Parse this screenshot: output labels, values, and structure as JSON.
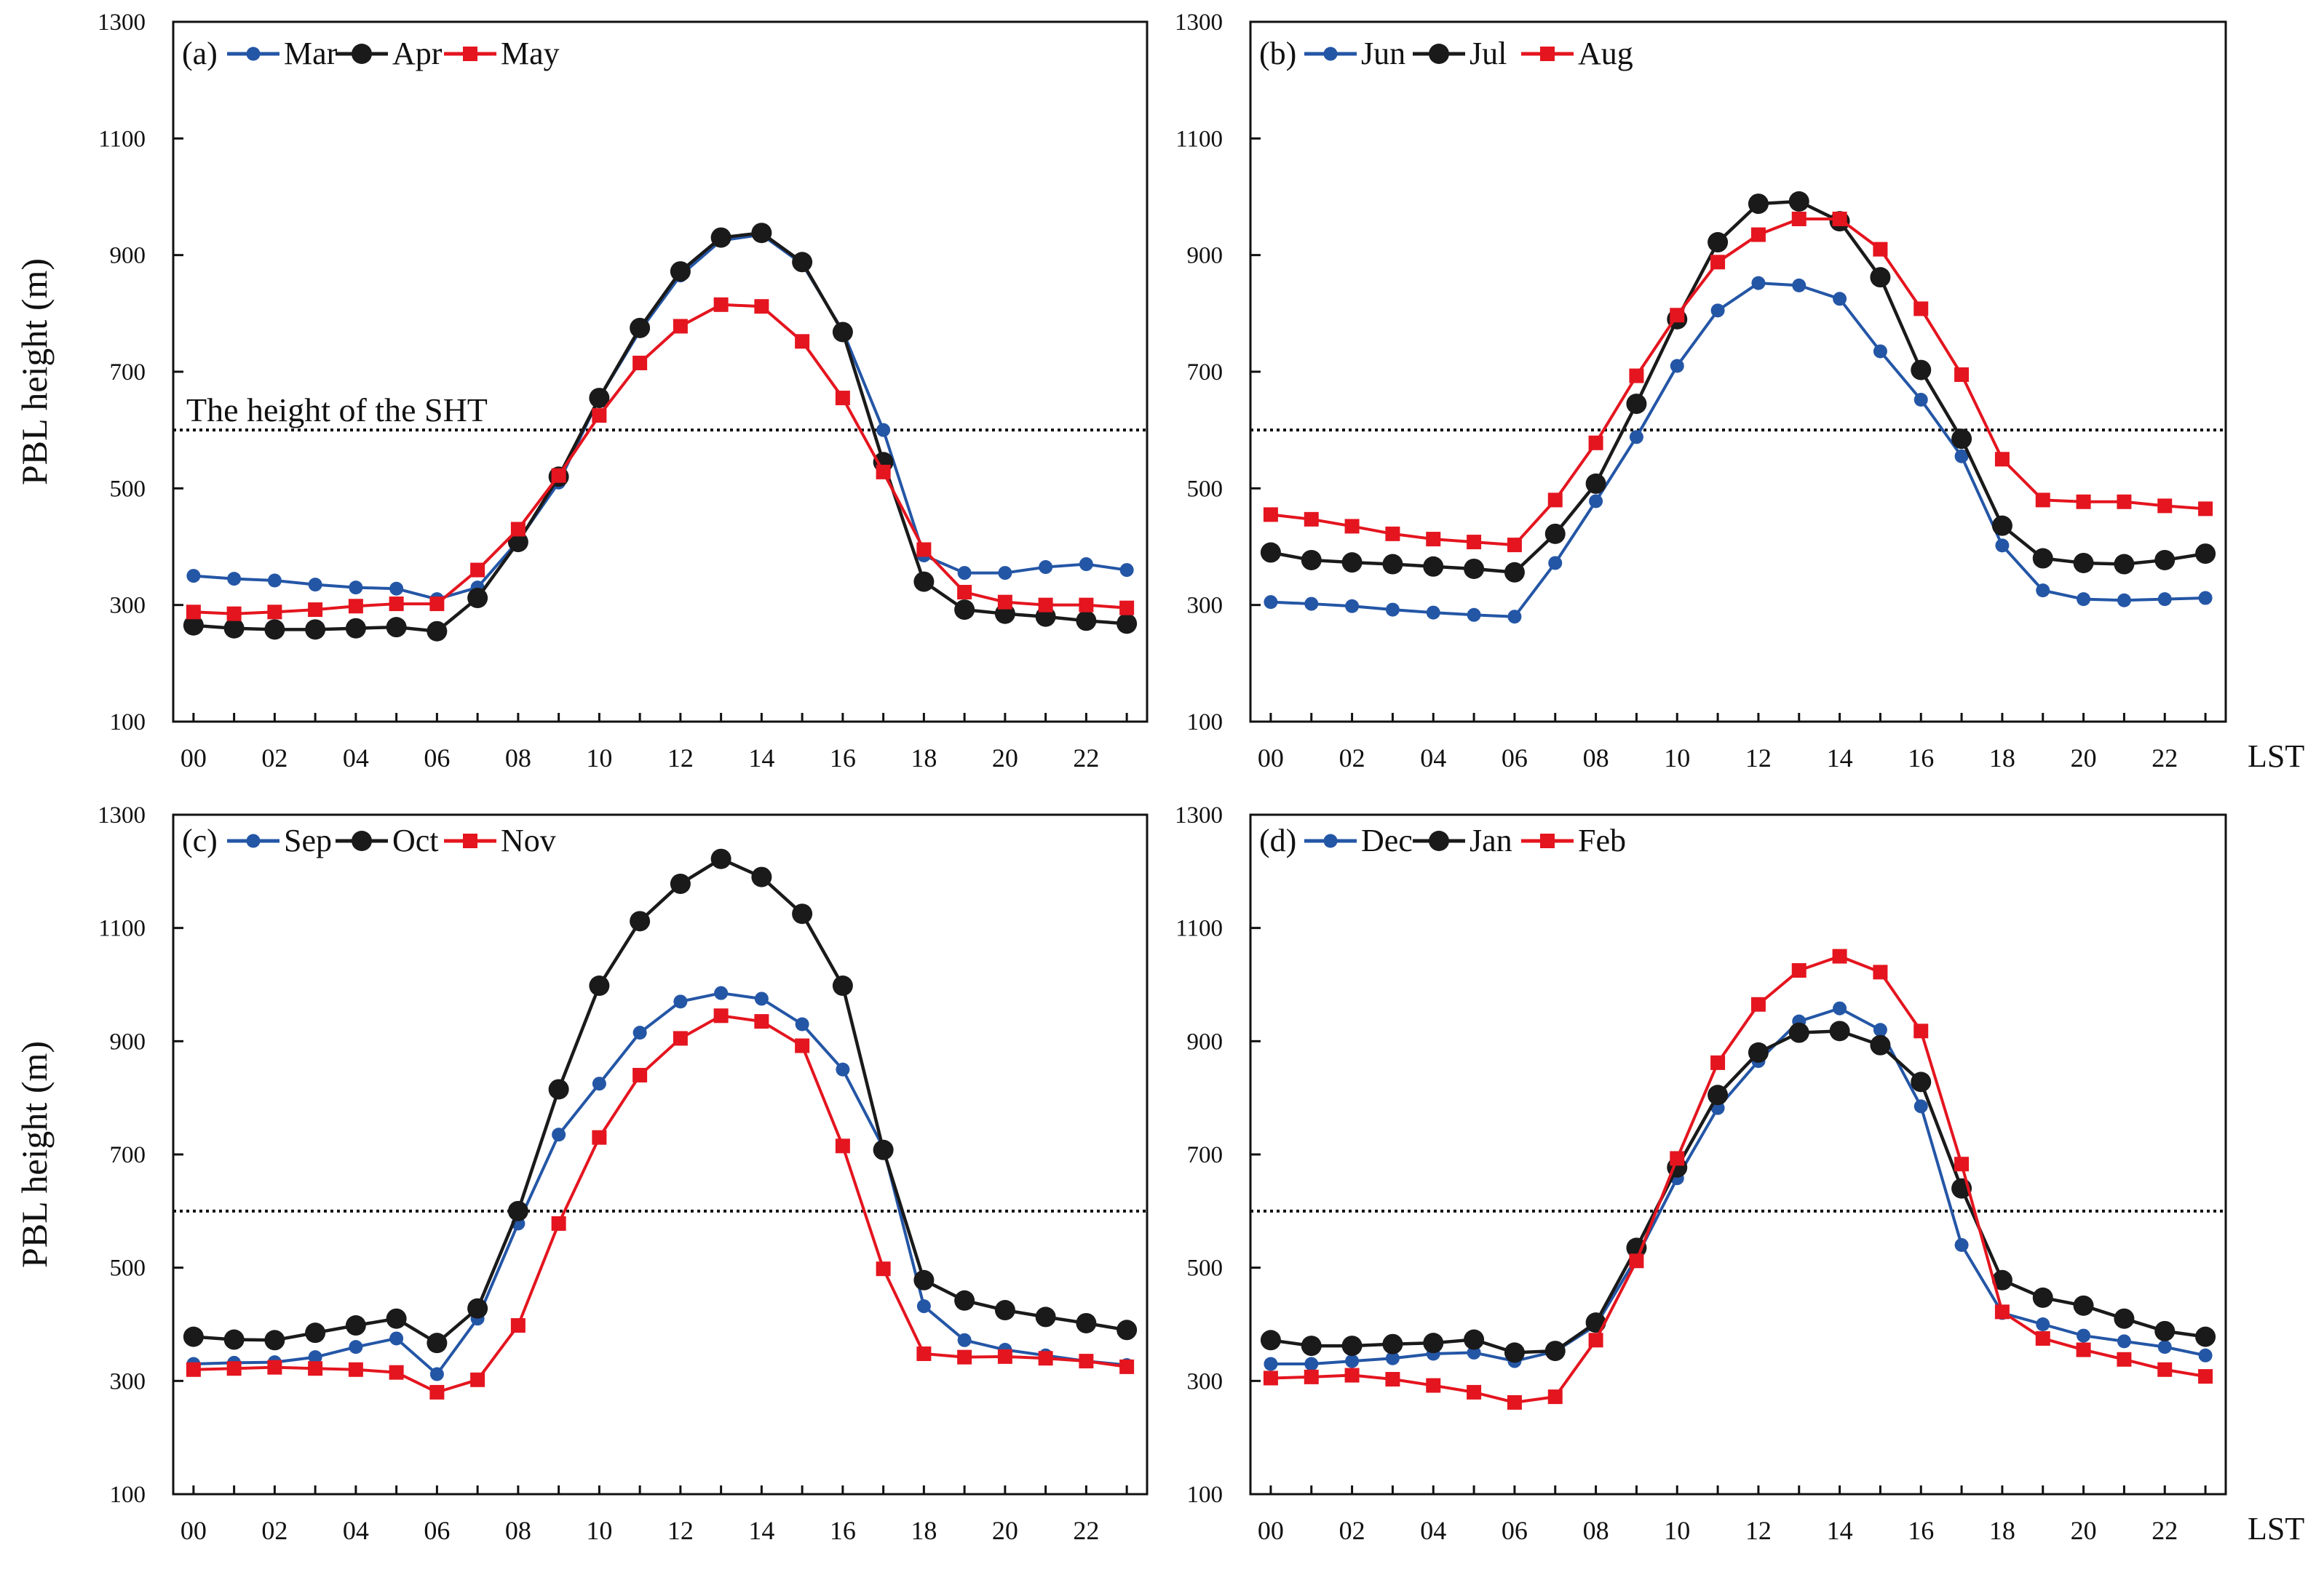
{
  "figure": {
    "ylabel": "PBL height (m)",
    "xunit": "LST",
    "annotation": "The height of the SHT",
    "reference_height": 600,
    "colors": {
      "blue": "#2456a6",
      "black": "#1a1a1a",
      "red": "#e4151f"
    }
  },
  "chart_data": [
    {
      "type": "line",
      "panel": "(a)",
      "x": [
        0,
        1,
        2,
        3,
        4,
        5,
        6,
        7,
        8,
        9,
        10,
        11,
        12,
        13,
        14,
        15,
        16,
        17,
        18,
        19,
        20,
        21,
        22,
        23
      ],
      "xticks": [
        "00",
        "02",
        "04",
        "06",
        "08",
        "10",
        "12",
        "14",
        "16",
        "18",
        "20",
        "22"
      ],
      "yticks": [
        "100",
        "300",
        "500",
        "700",
        "900",
        "1100",
        "1300"
      ],
      "ylim": [
        100,
        1300
      ],
      "ylabel": "PBL height (m)",
      "reference_line": 600,
      "annotation": "The height of the SHT",
      "series": [
        {
          "name": "Mar",
          "color": "#2456a6",
          "marker": "small-circle",
          "values": [
            350,
            345,
            342,
            335,
            330,
            328,
            310,
            330,
            410,
            510,
            655,
            770,
            865,
            925,
            935,
            885,
            770,
            600,
            385,
            355,
            355,
            365,
            370,
            360
          ]
        },
        {
          "name": "Apr",
          "color": "#1a1a1a",
          "marker": "large-circle",
          "values": [
            265,
            260,
            258,
            258,
            260,
            262,
            255,
            312,
            408,
            520,
            655,
            775,
            872,
            930,
            938,
            888,
            768,
            545,
            340,
            292,
            285,
            280,
            273,
            268
          ]
        },
        {
          "name": "May",
          "color": "#e4151f",
          "marker": "square",
          "values": [
            288,
            285,
            288,
            292,
            298,
            302,
            302,
            360,
            430,
            522,
            625,
            715,
            778,
            815,
            812,
            752,
            655,
            528,
            395,
            322,
            305,
            300,
            300,
            295
          ]
        }
      ]
    },
    {
      "type": "line",
      "panel": "(b)",
      "x": [
        0,
        1,
        2,
        3,
        4,
        5,
        6,
        7,
        8,
        9,
        10,
        11,
        12,
        13,
        14,
        15,
        16,
        17,
        18,
        19,
        20,
        21,
        22,
        23
      ],
      "xticks": [
        "00",
        "02",
        "04",
        "06",
        "08",
        "10",
        "12",
        "14",
        "16",
        "18",
        "20",
        "22"
      ],
      "yticks": [
        "100",
        "300",
        "500",
        "700",
        "900",
        "1100",
        "1300"
      ],
      "ylim": [
        100,
        1300
      ],
      "ylabel": "",
      "xunit": "LST",
      "reference_line": 600,
      "series": [
        {
          "name": "Jun",
          "color": "#2456a6",
          "marker": "small-circle",
          "values": [
            305,
            302,
            298,
            292,
            287,
            283,
            280,
            372,
            478,
            588,
            710,
            805,
            852,
            848,
            825,
            735,
            652,
            555,
            402,
            325,
            310,
            308,
            310,
            312
          ]
        },
        {
          "name": "Jul",
          "color": "#1a1a1a",
          "marker": "large-circle",
          "values": [
            390,
            377,
            373,
            370,
            366,
            362,
            356,
            422,
            508,
            645,
            790,
            922,
            988,
            992,
            958,
            862,
            703,
            585,
            436,
            380,
            372,
            370,
            377,
            388
          ]
        },
        {
          "name": "Aug",
          "color": "#e4151f",
          "marker": "square",
          "values": [
            455,
            447,
            435,
            422,
            413,
            408,
            403,
            480,
            578,
            693,
            797,
            888,
            935,
            962,
            962,
            910,
            808,
            695,
            550,
            480,
            477,
            477,
            470,
            465
          ]
        }
      ]
    },
    {
      "type": "line",
      "panel": "(c)",
      "x": [
        0,
        1,
        2,
        3,
        4,
        5,
        6,
        7,
        8,
        9,
        10,
        11,
        12,
        13,
        14,
        15,
        16,
        17,
        18,
        19,
        20,
        21,
        22,
        23
      ],
      "xticks": [
        "00",
        "02",
        "04",
        "06",
        "08",
        "10",
        "12",
        "14",
        "16",
        "18",
        "20",
        "22"
      ],
      "yticks": [
        "100",
        "300",
        "500",
        "700",
        "900",
        "1100",
        "1300"
      ],
      "ylim": [
        100,
        1300
      ],
      "ylabel": "PBL height (m)",
      "reference_line": 600,
      "series": [
        {
          "name": "Sep",
          "color": "#2456a6",
          "marker": "small-circle",
          "values": [
            330,
            332,
            333,
            342,
            360,
            375,
            312,
            410,
            578,
            735,
            825,
            915,
            970,
            985,
            975,
            930,
            850,
            712,
            432,
            372,
            355,
            345,
            335,
            328
          ]
        },
        {
          "name": "Oct",
          "color": "#1a1a1a",
          "marker": "large-circle",
          "values": [
            378,
            373,
            372,
            385,
            398,
            410,
            367,
            428,
            600,
            815,
            998,
            1112,
            1178,
            1222,
            1190,
            1125,
            998,
            708,
            478,
            442,
            425,
            413,
            402,
            390
          ]
        },
        {
          "name": "Nov",
          "color": "#e4151f",
          "marker": "square",
          "values": [
            320,
            322,
            324,
            322,
            320,
            315,
            280,
            302,
            398,
            578,
            730,
            840,
            905,
            945,
            935,
            892,
            715,
            498,
            348,
            342,
            343,
            340,
            335,
            325
          ]
        }
      ]
    },
    {
      "type": "line",
      "panel": "(d)",
      "x": [
        0,
        1,
        2,
        3,
        4,
        5,
        6,
        7,
        8,
        9,
        10,
        11,
        12,
        13,
        14,
        15,
        16,
        17,
        18,
        19,
        20,
        21,
        22,
        23
      ],
      "xticks": [
        "00",
        "02",
        "04",
        "06",
        "08",
        "10",
        "12",
        "14",
        "16",
        "18",
        "20",
        "22"
      ],
      "yticks": [
        "100",
        "300",
        "500",
        "700",
        "900",
        "1100",
        "1300"
      ],
      "ylim": [
        100,
        1300
      ],
      "ylabel": "",
      "xunit": "LST",
      "reference_line": 600,
      "series": [
        {
          "name": "Dec",
          "color": "#2456a6",
          "marker": "small-circle",
          "values": [
            330,
            330,
            335,
            340,
            348,
            350,
            335,
            352,
            398,
            518,
            658,
            782,
            865,
            935,
            958,
            920,
            785,
            540,
            420,
            400,
            380,
            370,
            360,
            345
          ]
        },
        {
          "name": "Jan",
          "color": "#1a1a1a",
          "marker": "large-circle",
          "values": [
            372,
            362,
            362,
            365,
            367,
            373,
            350,
            353,
            403,
            535,
            677,
            805,
            880,
            915,
            918,
            893,
            828,
            640,
            478,
            447,
            433,
            410,
            388,
            378
          ]
        },
        {
          "name": "Feb",
          "color": "#e4151f",
          "marker": "square",
          "values": [
            305,
            307,
            310,
            303,
            292,
            280,
            262,
            272,
            372,
            512,
            693,
            862,
            965,
            1025,
            1050,
            1022,
            918,
            683,
            422,
            375,
            355,
            338,
            320,
            308
          ]
        }
      ]
    }
  ]
}
